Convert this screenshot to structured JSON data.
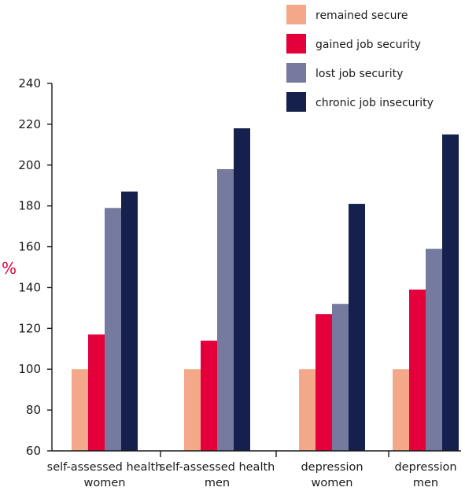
{
  "chart_data": {
    "type": "bar",
    "ylabel": "%",
    "ylim": [
      60,
      240
    ],
    "yticks": [
      60,
      80,
      100,
      120,
      140,
      160,
      180,
      200,
      220,
      240
    ],
    "categories": [
      [
        "self-assessed health",
        "women"
      ],
      [
        "self-assessed health",
        "men"
      ],
      [
        "depression",
        "women"
      ],
      [
        "depression",
        "men"
      ]
    ],
    "legend_position": "top-right",
    "series": [
      {
        "name": "remained secure",
        "color": "#f4a88a",
        "values": [
          100,
          100,
          100,
          100
        ]
      },
      {
        "name": "gained job security",
        "color": "#e4003b",
        "values": [
          117,
          114,
          127,
          139
        ]
      },
      {
        "name": "lost job security",
        "color": "#757a9e",
        "values": [
          179,
          198,
          132,
          159
        ]
      },
      {
        "name": "chronic job insecurity",
        "color": "#15204d",
        "values": [
          187,
          218,
          181,
          215
        ]
      }
    ]
  }
}
